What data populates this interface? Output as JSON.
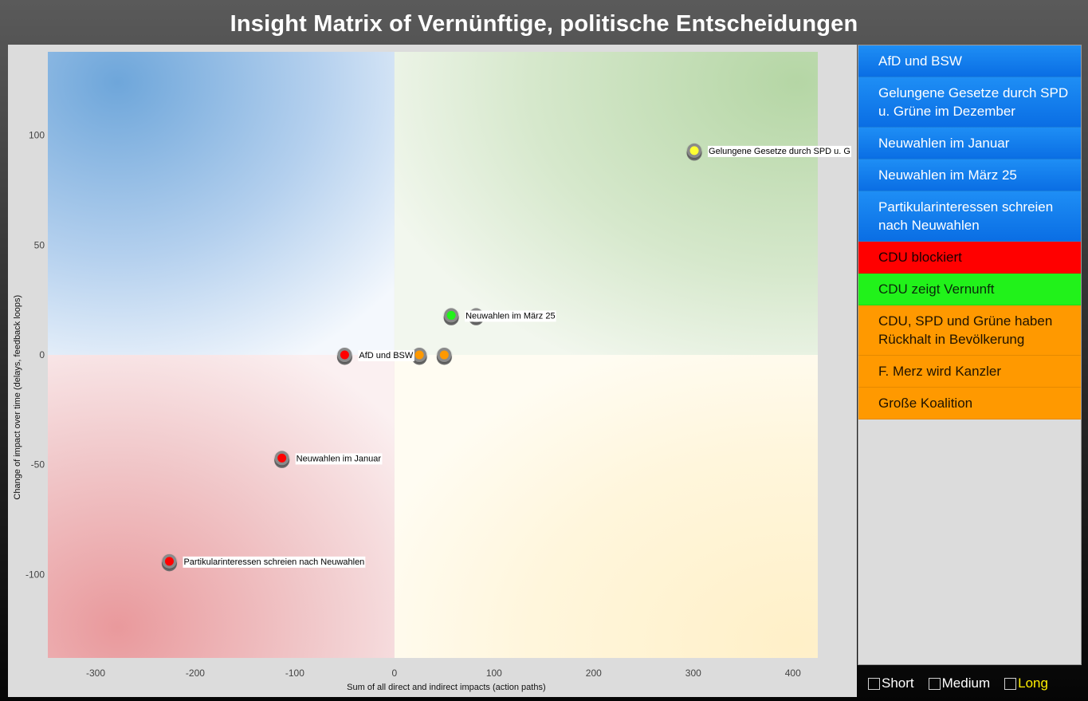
{
  "title": "Insight Matrix of Vernünftige, politische Entscheidungen",
  "colors": {
    "blue": "#1a7ff0",
    "red": "#ff0000",
    "green": "#21f21a",
    "orange": "#ff9900",
    "yellow": "#ffff33"
  },
  "chart_data": {
    "type": "scatter",
    "title": "Insight Matrix of Vernünftige, politische Entscheidungen",
    "xlabel": "Sum of all direct and indirect impacts (action paths)",
    "ylabel": "Change of impact over time (delays, feedback loops)",
    "xlim": [
      -348,
      425
    ],
    "ylim": [
      -138,
      138
    ],
    "x_ticks": [
      -300,
      -200,
      -100,
      0,
      100,
      200,
      300,
      400
    ],
    "y_ticks": [
      100,
      50,
      0,
      -50,
      -100
    ],
    "grid": false,
    "points": [
      {
        "x": 301,
        "y": 93,
        "label": "Gelungene Gesetze durch SPD u. G",
        "color": "#ffff33"
      },
      {
        "x": 57,
        "y": 18,
        "label": "Neuwahlen im März 25",
        "color": "#21f21a"
      },
      {
        "x": 82,
        "y": 18,
        "label": "",
        "color": "#21f21a"
      },
      {
        "x": -50,
        "y": 0,
        "label": "AfD und BSW",
        "color": "#ff0000"
      },
      {
        "x": 25,
        "y": 0,
        "label": "",
        "color": "#ff9900"
      },
      {
        "x": 50,
        "y": 0,
        "label": "",
        "color": "#ff9900"
      },
      {
        "x": -113,
        "y": -47,
        "label": "Neuwahlen im Januar",
        "color": "#ff0000"
      },
      {
        "x": -226,
        "y": -94,
        "label": "Partikularinteressen schreien nach Neuwahlen",
        "color": "#ff0000"
      }
    ]
  },
  "legend": {
    "items": [
      {
        "label": "AfD und BSW",
        "color": "blue"
      },
      {
        "label": "Gelungene Gesetze durch SPD u. Grüne im Dezember",
        "color": "blue"
      },
      {
        "label": "Neuwahlen im Januar",
        "color": "blue"
      },
      {
        "label": "Neuwahlen im März 25",
        "color": "blue"
      },
      {
        "label": "Partikularinteressen schreien nach Neuwahlen",
        "color": "blue"
      },
      {
        "label": "CDU blockiert",
        "color": "red"
      },
      {
        "label": "CDU zeigt Vernunft",
        "color": "green"
      },
      {
        "label": "CDU, SPD und Grüne haben Rückhalt in Bevölkerung",
        "color": "orange"
      },
      {
        "label": "F. Merz wird Kanzler",
        "color": "orange"
      },
      {
        "label": "Große Koalition",
        "color": "orange"
      }
    ]
  },
  "filters": {
    "short": {
      "label": "Short",
      "checked": false
    },
    "medium": {
      "label": "Medium",
      "checked": false
    },
    "long": {
      "label": "Long",
      "checked": false,
      "highlighted": true
    }
  }
}
